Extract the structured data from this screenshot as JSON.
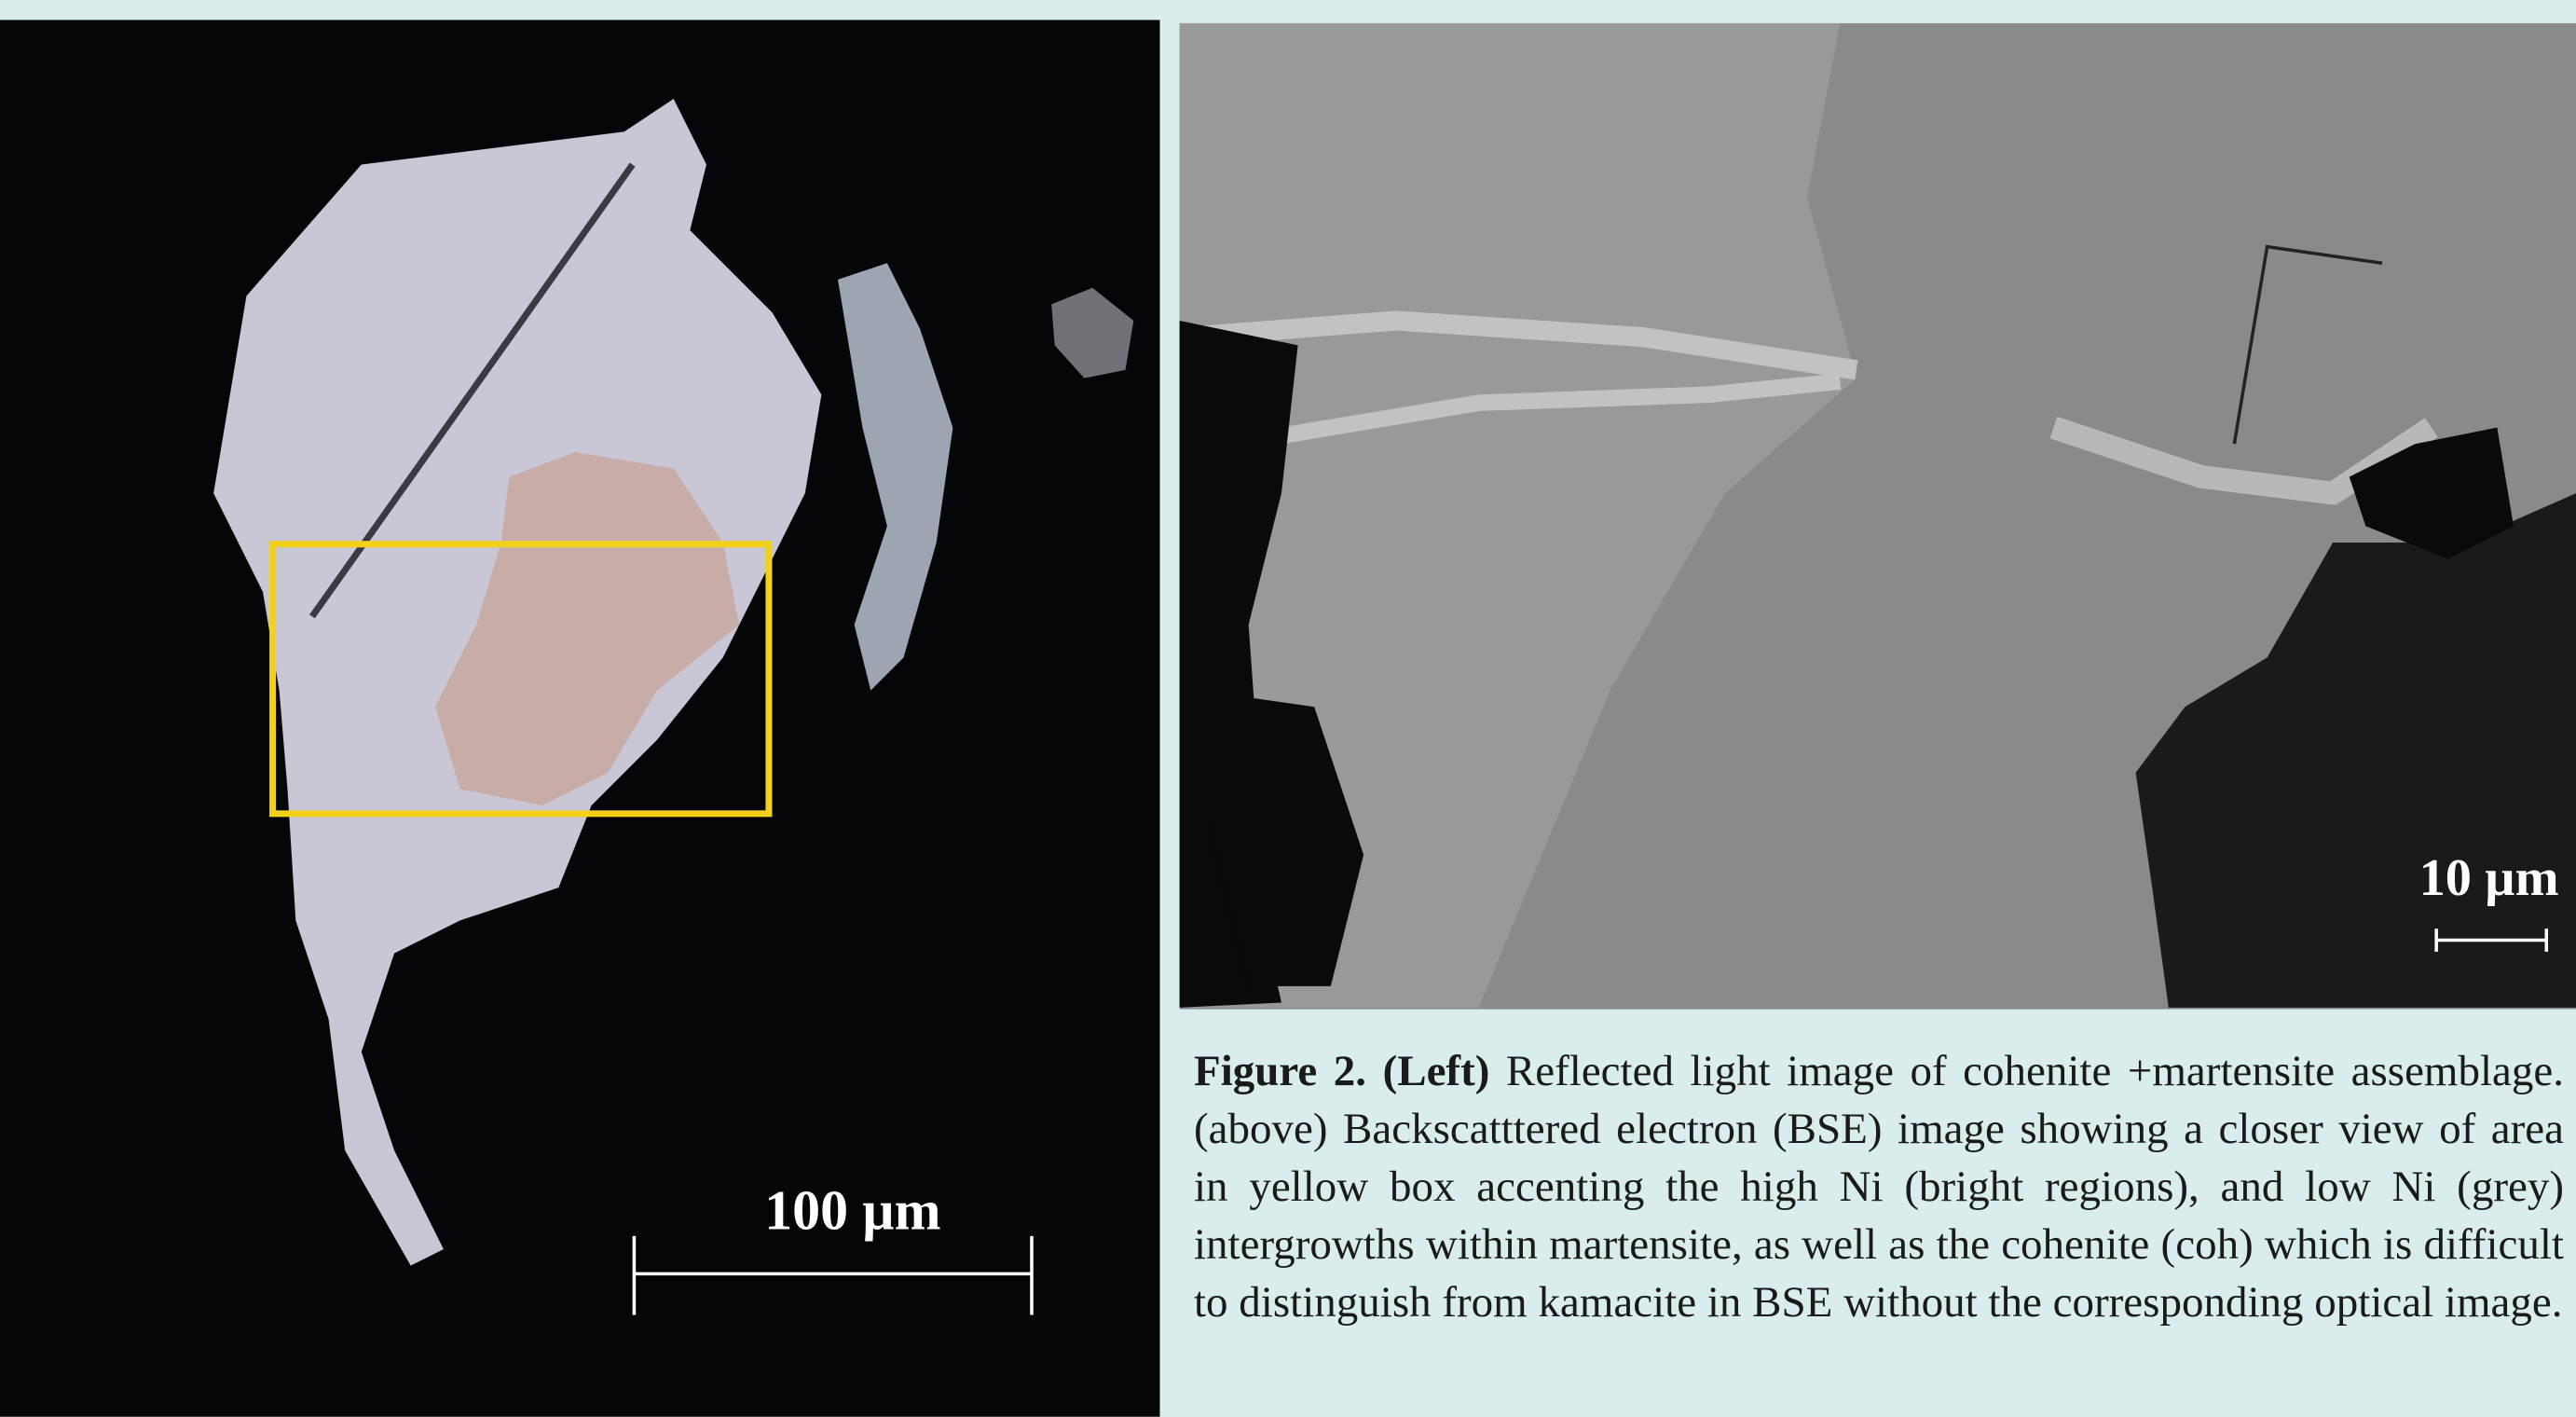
{
  "figure": {
    "left_scale_bar": "100 µm",
    "right_scale_bar": "10 µm"
  },
  "caption": {
    "label": "Figure 2.",
    "left": "(Left)",
    "text": "Reflected light image of cohenite +martensite assemblage. (above) Backscatttered electron (BSE) image showing a closer view of area in yellow box accenting the high Ni (bright regions), and low Ni (grey) intergrowths within martensite, as well as the cohenite (coh) which is difficult to distinguish from kamacite in BSE without the corresponding optical image."
  }
}
